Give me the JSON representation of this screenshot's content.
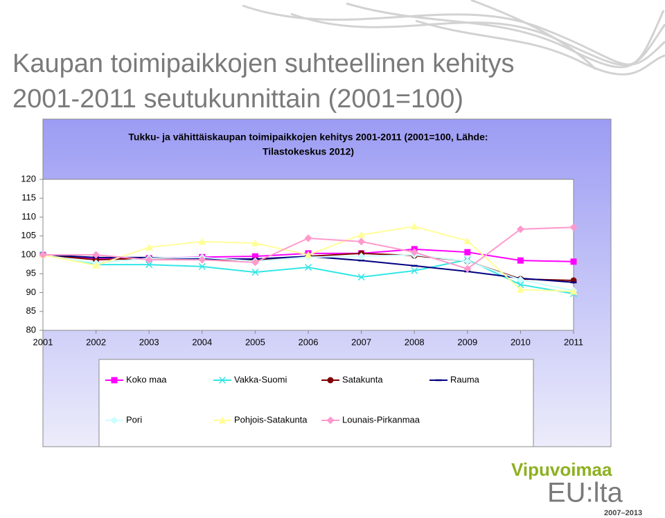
{
  "slide_title": [
    "Kaupan toimipaikkojen suhteellinen kehitys",
    "2001-2011 seutukunnittain (2001=100)"
  ],
  "logo": {
    "name": "Vipuvoimaa",
    "sub": "EU:lta",
    "years": "2007–2013"
  },
  "chart_data": {
    "type": "line",
    "title": [
      "Tukku- ja vähittäiskaupan toimipaikkojen kehitys 2001-2011 (2001=100, Lähde:",
      "Tilastokeskus 2012)"
    ],
    "categories": [
      "2001",
      "2002",
      "2003",
      "2004",
      "2005",
      "2006",
      "2007",
      "2008",
      "2009",
      "2010",
      "2011"
    ],
    "ylim": [
      80,
      120
    ],
    "yticks": [
      80,
      85,
      90,
      95,
      100,
      105,
      110,
      115,
      120
    ],
    "grid": false,
    "series": [
      {
        "name": "Koko maa",
        "color": "#ff00ff",
        "marker": "square",
        "values": [
          100,
          98.9,
          99.1,
          99.4,
          99.6,
          100.4,
          100.4,
          101.5,
          100.7,
          98.5,
          98.2
        ]
      },
      {
        "name": "Vakka-Suomi",
        "color": "#33e6e6",
        "marker": "x",
        "values": [
          100,
          97.4,
          97.4,
          96.9,
          95.4,
          96.7,
          94.1,
          95.8,
          98.7,
          92.1,
          89.7
        ]
      },
      {
        "name": "Satakunta",
        "color": "#800000",
        "marker": "circle",
        "values": [
          100,
          98.7,
          99.1,
          98.9,
          98.5,
          99.6,
          100.4,
          99.8,
          98.3,
          93.6,
          93.2
        ]
      },
      {
        "name": "Rauma",
        "color": "#000080",
        "marker": "dash",
        "values": [
          100,
          99.3,
          99.3,
          98.9,
          98.9,
          99.6,
          98.5,
          97.1,
          95.6,
          93.8,
          92.7
        ]
      },
      {
        "name": "Pori",
        "color": "#ccffff",
        "marker": "diamond",
        "values": [
          100,
          97.8,
          99.1,
          99.3,
          98.3,
          99.4,
          99.6,
          100,
          98.3,
          93.4,
          90.5
        ]
      },
      {
        "name": "Pohjois-Satakunta",
        "color": "#ffff99",
        "marker": "triangle",
        "values": [
          100,
          97.2,
          102,
          103.5,
          103.1,
          100,
          105.3,
          107.5,
          103.7,
          90.8,
          90.3
        ]
      },
      {
        "name": "Lounais-Pirkanmaa",
        "color": "#ff99cc",
        "marker": "diamond",
        "values": [
          100,
          100,
          98.7,
          98.7,
          98,
          104.4,
          103.5,
          100.7,
          96.3,
          106.8,
          107.3
        ]
      }
    ]
  }
}
